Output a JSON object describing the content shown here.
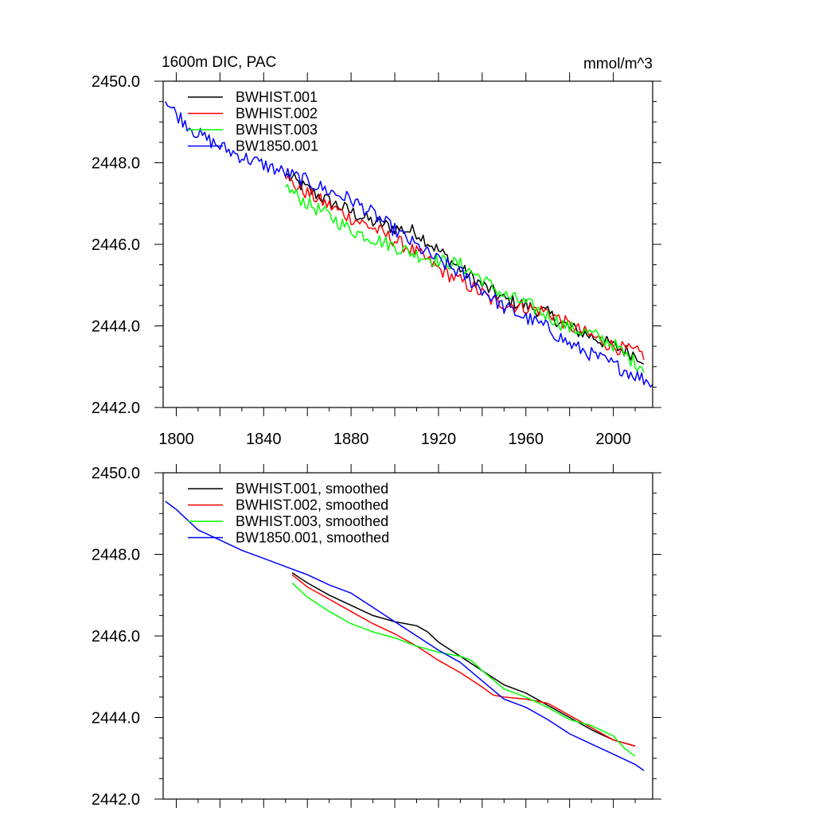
{
  "chart_data": [
    {
      "type": "line",
      "title": "1600m DIC, PAC",
      "units": "mmol/m^3",
      "xlabel": "",
      "ylabel": "",
      "xlim": [
        1794,
        2018
      ],
      "ylim": [
        2442.0,
        2450.0
      ],
      "xticks": [
        1800,
        1840,
        1880,
        1920,
        1960,
        2000
      ],
      "xtick_labels": [
        "1800",
        "1840",
        "1880",
        "1920",
        "1960",
        "2000"
      ],
      "yticks": [
        2442.0,
        2444.0,
        2446.0,
        2448.0,
        2450.0
      ],
      "ytick_labels": [
        "2442.0",
        "2444.0",
        "2446.0",
        "2448.0",
        "2450.0"
      ],
      "legend_position": "top-left",
      "grid": false,
      "noisy": true,
      "series": [
        {
          "name": "BWHIST.001",
          "color": "#000000",
          "x": [
            1850,
            1860,
            1870,
            1880,
            1890,
            1900,
            1905,
            1910,
            1920,
            1930,
            1940,
            1950,
            1960,
            1970,
            1980,
            1990,
            2000,
            2010,
            2014
          ],
          "y": [
            2447.7,
            2447.35,
            2447.05,
            2446.8,
            2446.55,
            2446.4,
            2446.35,
            2446.3,
            2445.85,
            2445.4,
            2445.0,
            2444.65,
            2444.5,
            2444.3,
            2443.95,
            2443.75,
            2443.5,
            2443.3,
            2443.2
          ]
        },
        {
          "name": "BWHIST.002",
          "color": "#ff0000",
          "x": [
            1850,
            1860,
            1870,
            1880,
            1890,
            1900,
            1910,
            1920,
            1930,
            1940,
            1945,
            1950,
            1960,
            1970,
            1980,
            1990,
            2000,
            2010,
            2014
          ],
          "y": [
            2447.6,
            2447.25,
            2446.95,
            2446.65,
            2446.4,
            2446.1,
            2445.8,
            2445.4,
            2445.1,
            2444.8,
            2444.6,
            2444.55,
            2444.45,
            2444.35,
            2444.0,
            2443.75,
            2443.5,
            2443.35,
            2443.3
          ]
        },
        {
          "name": "BWHIST.003",
          "color": "#00ff00",
          "x": [
            1850,
            1860,
            1870,
            1880,
            1890,
            1900,
            1910,
            1920,
            1930,
            1940,
            1950,
            1960,
            1970,
            1980,
            1990,
            2000,
            2005,
            2010,
            2014
          ],
          "y": [
            2447.4,
            2447.0,
            2446.7,
            2446.35,
            2446.15,
            2445.95,
            2445.75,
            2445.6,
            2445.5,
            2445.15,
            2444.75,
            2444.55,
            2444.25,
            2443.95,
            2443.8,
            2443.55,
            2443.3,
            2443.1,
            2443.0
          ]
        },
        {
          "name": "BW1850.001",
          "color": "#0000ff",
          "x": [
            1795,
            1800,
            1810,
            1820,
            1830,
            1840,
            1850,
            1860,
            1870,
            1880,
            1890,
            1900,
            1910,
            1920,
            1930,
            1940,
            1950,
            1960,
            1970,
            1980,
            1990,
            2000,
            2010,
            2018
          ],
          "y": [
            2449.5,
            2449.2,
            2448.7,
            2448.4,
            2448.15,
            2447.95,
            2447.75,
            2447.55,
            2447.3,
            2447.1,
            2446.75,
            2446.35,
            2445.95,
            2445.6,
            2445.3,
            2444.9,
            2444.45,
            2444.2,
            2443.95,
            2443.55,
            2443.3,
            2443.05,
            2442.8,
            2442.6
          ]
        }
      ]
    },
    {
      "type": "line",
      "title": "",
      "xlabel": "",
      "ylabel": "",
      "xlim": [
        1794,
        2018
      ],
      "ylim": [
        2442.0,
        2450.0
      ],
      "xticks": [
        1800,
        1840,
        1880,
        1920,
        1960,
        2000
      ],
      "yticks": [
        2442.0,
        2444.0,
        2446.0,
        2448.0,
        2450.0
      ],
      "ytick_labels": [
        "2442.0",
        "2444.0",
        "2446.0",
        "2448.0",
        "2450.0"
      ],
      "legend_position": "top-left",
      "grid": false,
      "noisy": false,
      "series": [
        {
          "name": "BWHIST.001, smoothed",
          "color": "#000000",
          "x": [
            1853,
            1860,
            1870,
            1880,
            1890,
            1900,
            1910,
            1915,
            1920,
            1930,
            1940,
            1950,
            1960,
            1970,
            1980,
            1990,
            2000,
            2010
          ],
          "y": [
            2447.55,
            2447.3,
            2447.0,
            2446.75,
            2446.5,
            2446.35,
            2446.25,
            2446.1,
            2445.85,
            2445.5,
            2445.15,
            2444.8,
            2444.6,
            2444.3,
            2444.0,
            2443.7,
            2443.45,
            2443.3
          ]
        },
        {
          "name": "BWHIST.002, smoothed",
          "color": "#ff0000",
          "x": [
            1853,
            1860,
            1870,
            1880,
            1890,
            1900,
            1910,
            1920,
            1930,
            1940,
            1945,
            1950,
            1960,
            1970,
            1980,
            1990,
            2000,
            2010
          ],
          "y": [
            2447.5,
            2447.2,
            2446.9,
            2446.6,
            2446.3,
            2446.05,
            2445.75,
            2445.4,
            2445.1,
            2444.75,
            2444.55,
            2444.5,
            2444.45,
            2444.35,
            2444.05,
            2443.75,
            2443.45,
            2443.3
          ]
        },
        {
          "name": "BWHIST.003, smoothed",
          "color": "#00ff00",
          "x": [
            1853,
            1860,
            1870,
            1880,
            1890,
            1900,
            1910,
            1920,
            1930,
            1935,
            1940,
            1950,
            1960,
            1970,
            1980,
            1990,
            2000,
            2005,
            2010
          ],
          "y": [
            2447.3,
            2446.95,
            2446.6,
            2446.3,
            2446.1,
            2445.95,
            2445.75,
            2445.6,
            2445.5,
            2445.4,
            2445.15,
            2444.7,
            2444.5,
            2444.25,
            2443.95,
            2443.8,
            2443.55,
            2443.25,
            2443.05
          ]
        },
        {
          "name": "BW1850.001, smoothed",
          "color": "#0000ff",
          "x": [
            1795,
            1800,
            1810,
            1820,
            1830,
            1840,
            1850,
            1860,
            1870,
            1880,
            1890,
            1900,
            1910,
            1920,
            1930,
            1940,
            1950,
            1960,
            1970,
            1980,
            1990,
            2000,
            2010,
            2014
          ],
          "y": [
            2449.3,
            2449.1,
            2448.6,
            2448.35,
            2448.1,
            2447.9,
            2447.7,
            2447.5,
            2447.25,
            2447.05,
            2446.7,
            2446.35,
            2446.0,
            2445.65,
            2445.35,
            2444.9,
            2444.45,
            2444.25,
            2443.95,
            2443.6,
            2443.35,
            2443.1,
            2442.85,
            2442.7
          ]
        }
      ]
    }
  ]
}
